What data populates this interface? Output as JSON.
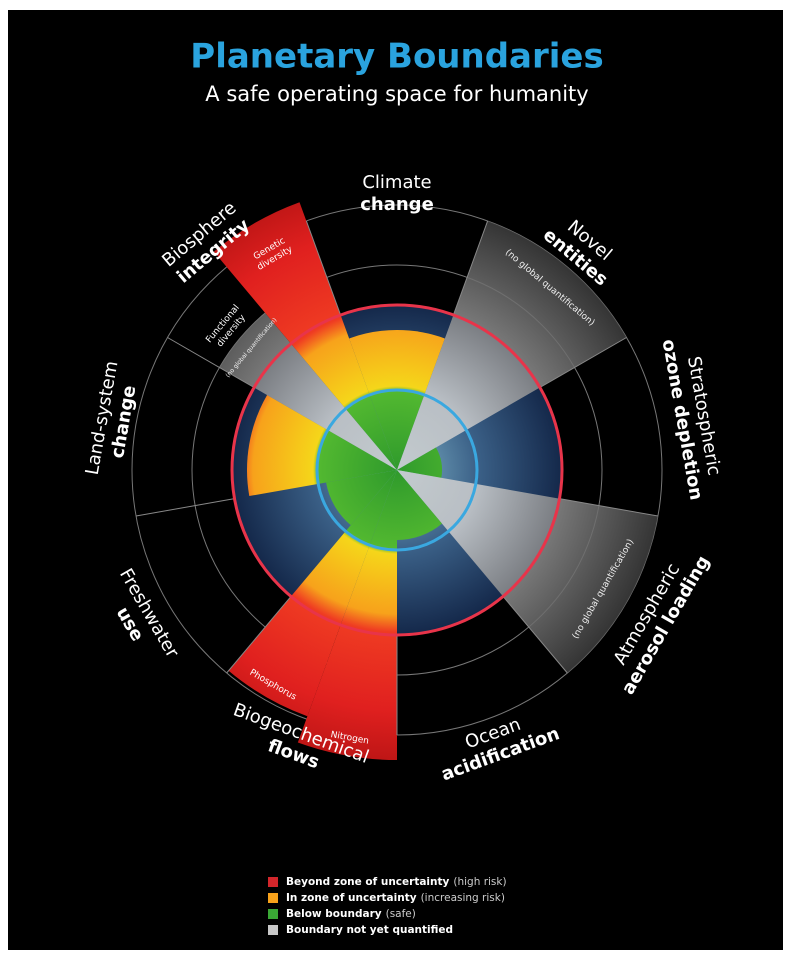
{
  "header": {
    "title": "Planetary Boundaries",
    "subtitle": "A safe operating space for humanity"
  },
  "boundaries": [
    {
      "label": [
        "Climate",
        "change"
      ]
    },
    {
      "label": [
        "Novel",
        "entities"
      ],
      "note": "(no global quantification)"
    },
    {
      "label": [
        "Stratospheric",
        "ozone depletion"
      ]
    },
    {
      "label": [
        "Atmospheric",
        "aerosol loading"
      ],
      "note": "(no global quantification)"
    },
    {
      "label": [
        "Ocean",
        "acidification"
      ]
    },
    {
      "label": [
        "Biogeochemical",
        "flows"
      ],
      "parts": [
        {
          "lines": [
            "Nitrogen"
          ]
        },
        {
          "lines": [
            "Phosphorus"
          ]
        }
      ]
    },
    {
      "label": [
        "Freshwater",
        "use"
      ]
    },
    {
      "label": [
        "Land-system",
        "change"
      ]
    },
    {
      "label": [
        "Biosphere",
        "integrity"
      ],
      "parts": [
        {
          "lines": [
            "Functional",
            "diversity"
          ],
          "note": "(no global quantification)"
        },
        {
          "lines": [
            "Genetic",
            "diversity"
          ]
        }
      ]
    }
  ],
  "legend": [
    {
      "strong": "Beyond zone of uncertainty",
      "text": "(high risk)"
    },
    {
      "strong": "In zone of uncertainty",
      "text": "(increasing risk)"
    },
    {
      "strong": "Below boundary",
      "text": "(safe)"
    },
    {
      "strong": "Boundary not yet quantified"
    }
  ]
}
